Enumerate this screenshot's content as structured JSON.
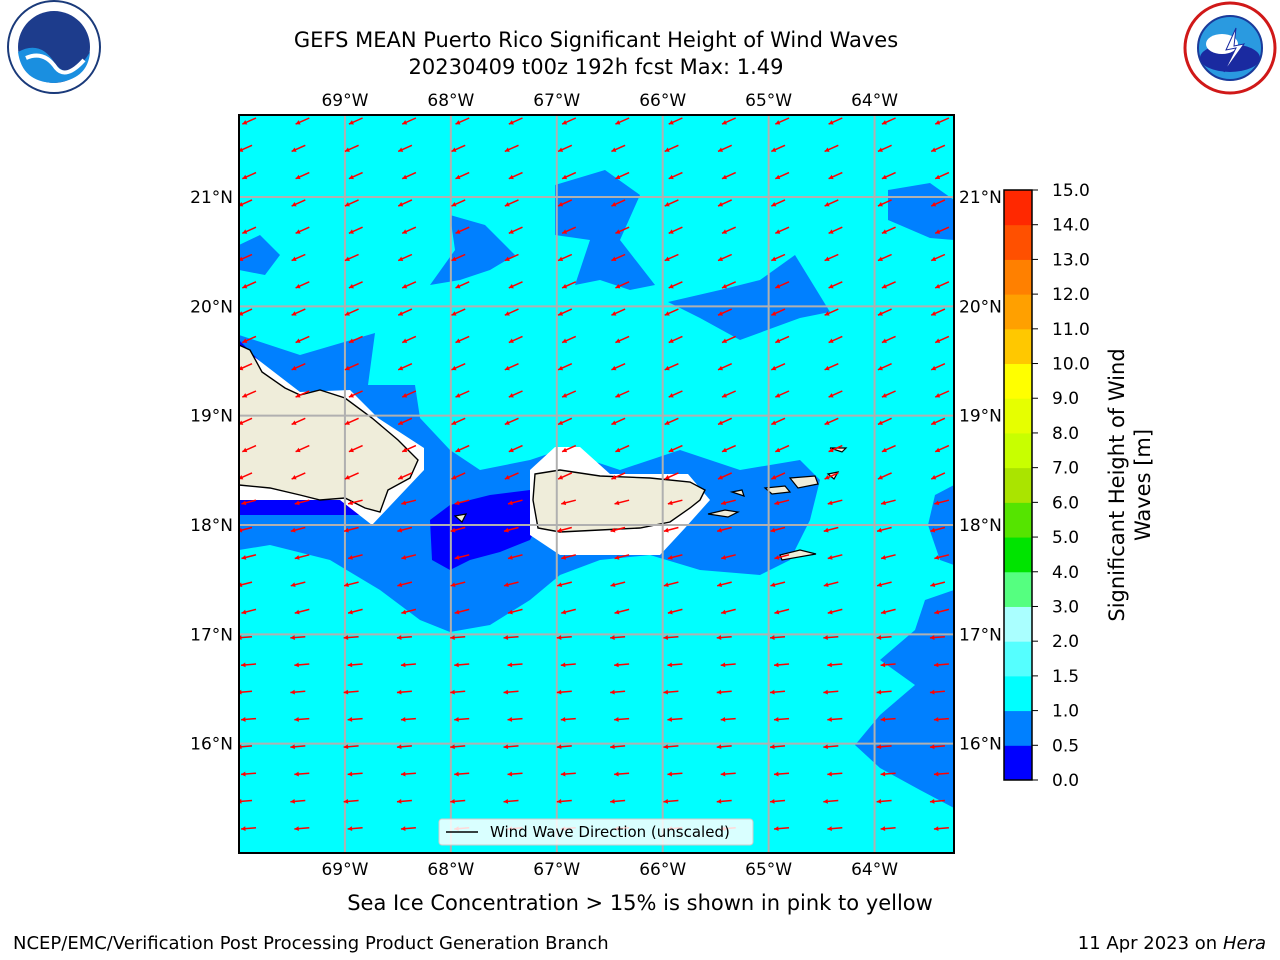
{
  "header": {
    "title_line1": "GEFS MEAN Puerto Rico Significant Height of Wind Waves",
    "title_line2": "20230409 t00z 192h fcst   Max: 1.49"
  },
  "map": {
    "lon_labels": [
      "69°W",
      "68°W",
      "67°W",
      "66°W",
      "65°W",
      "64°W"
    ],
    "lon_values": [
      -69,
      -68,
      -67,
      -66,
      -65,
      -64
    ],
    "lat_labels": [
      "21°N",
      "20°N",
      "19°N",
      "18°N",
      "17°N",
      "16°N"
    ],
    "lat_values": [
      21,
      20,
      19,
      18,
      17,
      16
    ],
    "lon_range": [
      -70,
      -63.25
    ],
    "lat_range": [
      15,
      21.75
    ],
    "grid": true,
    "ocean_color": "#00ffff",
    "land_color": "#efedda",
    "arrow_color": "#ff0000",
    "arrow_direction": "toward west-southwest",
    "legend": {
      "label": "Wind Wave Direction (unscaled)",
      "placement": "bottom-center"
    }
  },
  "colorbar": {
    "label": "Significant Height of Wind Waves [m]",
    "tick_labels": [
      "0.0",
      "0.5",
      "1.0",
      "1.5",
      "2.0",
      "3.0",
      "4.0",
      "5.0",
      "6.0",
      "7.0",
      "8.0",
      "9.0",
      "10.0",
      "11.0",
      "12.0",
      "13.0",
      "14.0",
      "15.0"
    ],
    "colors": [
      "#0000ff",
      "#0080ff",
      "#00ffff",
      "#55ffff",
      "#aaffff",
      "#55ff80",
      "#00e400",
      "#55e400",
      "#aae400",
      "#c8ff00",
      "#e6ff00",
      "#ffff00",
      "#ffc800",
      "#ffa000",
      "#ff8000",
      "#ff5000",
      "#ff2800",
      "#ff0000"
    ]
  },
  "logos": {
    "left": "noa-logo-icon",
    "right": "nws-logo-icon"
  },
  "footer": {
    "note": "Sea Ice Concentration > 15% is shown in pink to yellow",
    "left": "NCEP/EMC/Verification Post Processing Product Generation Branch",
    "right_prefix": "11 Apr 2023 on ",
    "right_host": "Hera"
  }
}
